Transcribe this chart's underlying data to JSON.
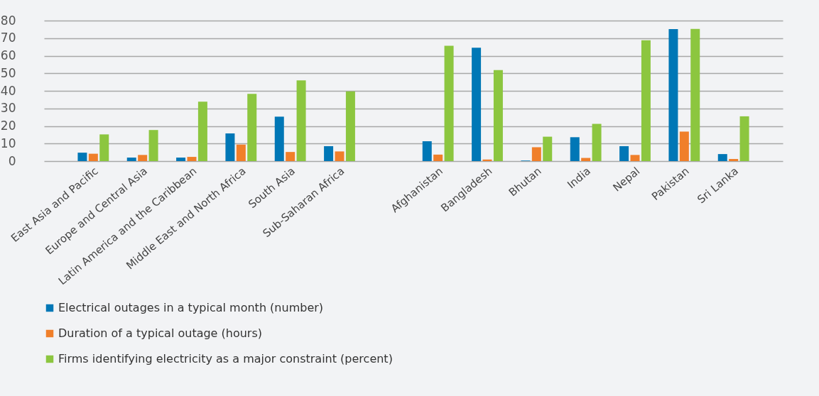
{
  "chart_data": {
    "type": "bar",
    "categories": [
      "East Asia and Pacific",
      "Europe and Central Asia",
      "Latin America and the Caribbean",
      "Middle East and North Africa",
      "South Asia",
      "Sub-Saharan Africa",
      null,
      "Afghanistan",
      "Bangladesh",
      "Bhutan",
      "India",
      "Nepal",
      "Pakistan",
      "Sri Lanka"
    ],
    "series": [
      {
        "name": "Electrical outages in a typical month (number)",
        "color": "#0077b6",
        "values": [
          4.8,
          2.0,
          2.0,
          15.8,
          25.3,
          8.5,
          null,
          11.3,
          64.5,
          0.3,
          13.6,
          8.5,
          75.2,
          4.0
        ]
      },
      {
        "name": "Duration of a typical outage (hours)",
        "color": "#f07f2a",
        "values": [
          4.2,
          3.5,
          2.4,
          9.4,
          5.2,
          5.5,
          null,
          3.7,
          0.9,
          7.9,
          1.8,
          3.5,
          16.8,
          1.2
        ]
      },
      {
        "name": "Firms identifying electricity as a major constraint (percent)",
        "color": "#8cc63f",
        "values": [
          15.2,
          17.7,
          33.8,
          38.3,
          46.0,
          39.7,
          null,
          65.7,
          51.8,
          13.9,
          21.2,
          68.8,
          75.3,
          25.5
        ]
      }
    ],
    "ylim": [
      0,
      80
    ],
    "yticks": [
      0,
      10,
      20,
      30,
      40,
      50,
      60,
      70,
      80
    ],
    "grid": "y",
    "legend": "bottom"
  }
}
